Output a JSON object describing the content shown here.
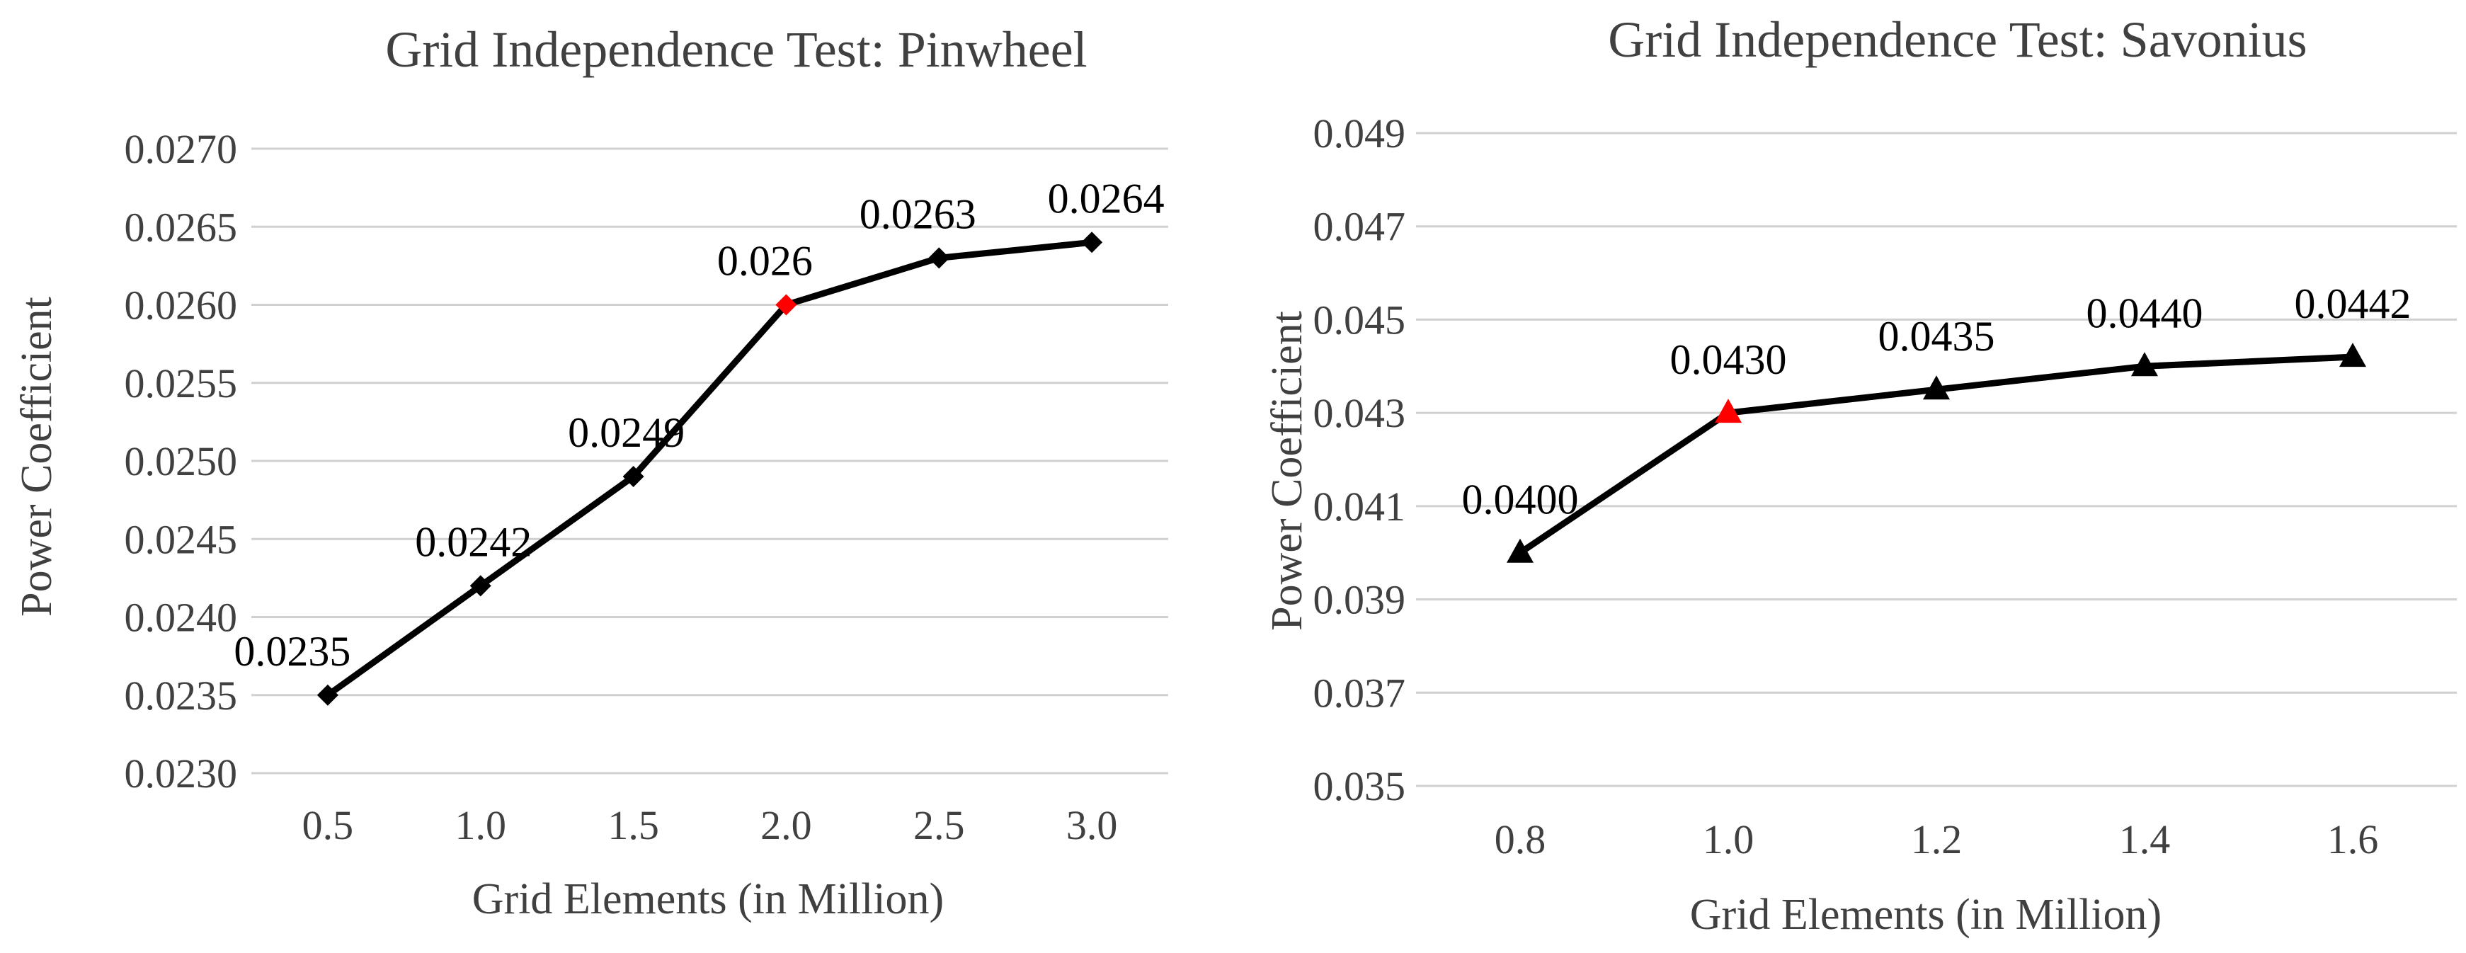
{
  "chart_data": [
    {
      "type": "line",
      "title": "Grid Independence  Test: Pinwheel",
      "xlabel": "Grid Elements (in Million)",
      "ylabel": "Power Coefficient",
      "categories": [
        "0.5",
        "1.0",
        "1.5",
        "2.0",
        "2.5",
        "3.0"
      ],
      "y_ticks": [
        "0.0230",
        "0.0235",
        "0.0240",
        "0.0245",
        "0.0250",
        "0.0255",
        "0.0260",
        "0.0265",
        "0.0270"
      ],
      "ylim": [
        0.023,
        0.027
      ],
      "grid": true,
      "marker": "diamond",
      "series": [
        {
          "values": [
            0.0235,
            0.0242,
            0.0249,
            0.026,
            0.0263,
            0.0264
          ],
          "data_labels": [
            "0.0235",
            "0.0242",
            "0.0249",
            "0.026",
            "0.0263",
            "0.0264"
          ],
          "highlight_index": 3
        }
      ]
    },
    {
      "type": "line",
      "title": "Grid Independence  Test: Savonius",
      "xlabel": "Grid Elements  (in Million)",
      "ylabel": "Power Coefficient",
      "categories": [
        "0.8",
        "1.0",
        "1.2",
        "1.4",
        "1.6"
      ],
      "y_ticks": [
        "0.035",
        "0.037",
        "0.039",
        "0.041",
        "0.043",
        "0.045",
        "0.047",
        "0.049"
      ],
      "ylim": [
        0.035,
        0.049
      ],
      "grid": true,
      "marker": "triangle",
      "series": [
        {
          "values": [
            0.04,
            0.043,
            0.0435,
            0.044,
            0.0442
          ],
          "data_labels": [
            "0.0400",
            "0.0430",
            "0.0435",
            "0.0440",
            "0.0442"
          ],
          "highlight_index": 1
        }
      ]
    }
  ],
  "colors": {
    "line": "#000000",
    "marker": "#000000",
    "highlight": "#ff0000",
    "grid": "#d0d0d0",
    "text": "#404040",
    "label": "#000000"
  }
}
